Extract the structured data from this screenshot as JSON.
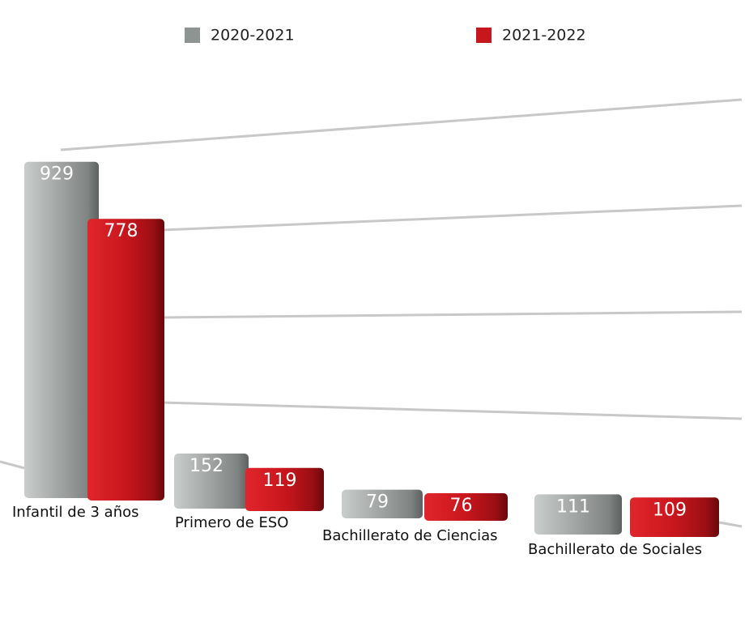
{
  "chart_data": {
    "type": "bar",
    "categories": [
      "Infantil de 3 años",
      "Primero de ESO",
      "Bachillerato de Ciencias",
      "Bachillerato de Sociales"
    ],
    "series": [
      {
        "name": "2020-2021",
        "color": "#8e9492",
        "values": [
          929,
          152,
          79,
          111
        ]
      },
      {
        "name": "2021-2022",
        "color": "#c8161d",
        "values": [
          778,
          119,
          76,
          109
        ]
      }
    ],
    "ylim": [
      0,
      1000
    ]
  }
}
